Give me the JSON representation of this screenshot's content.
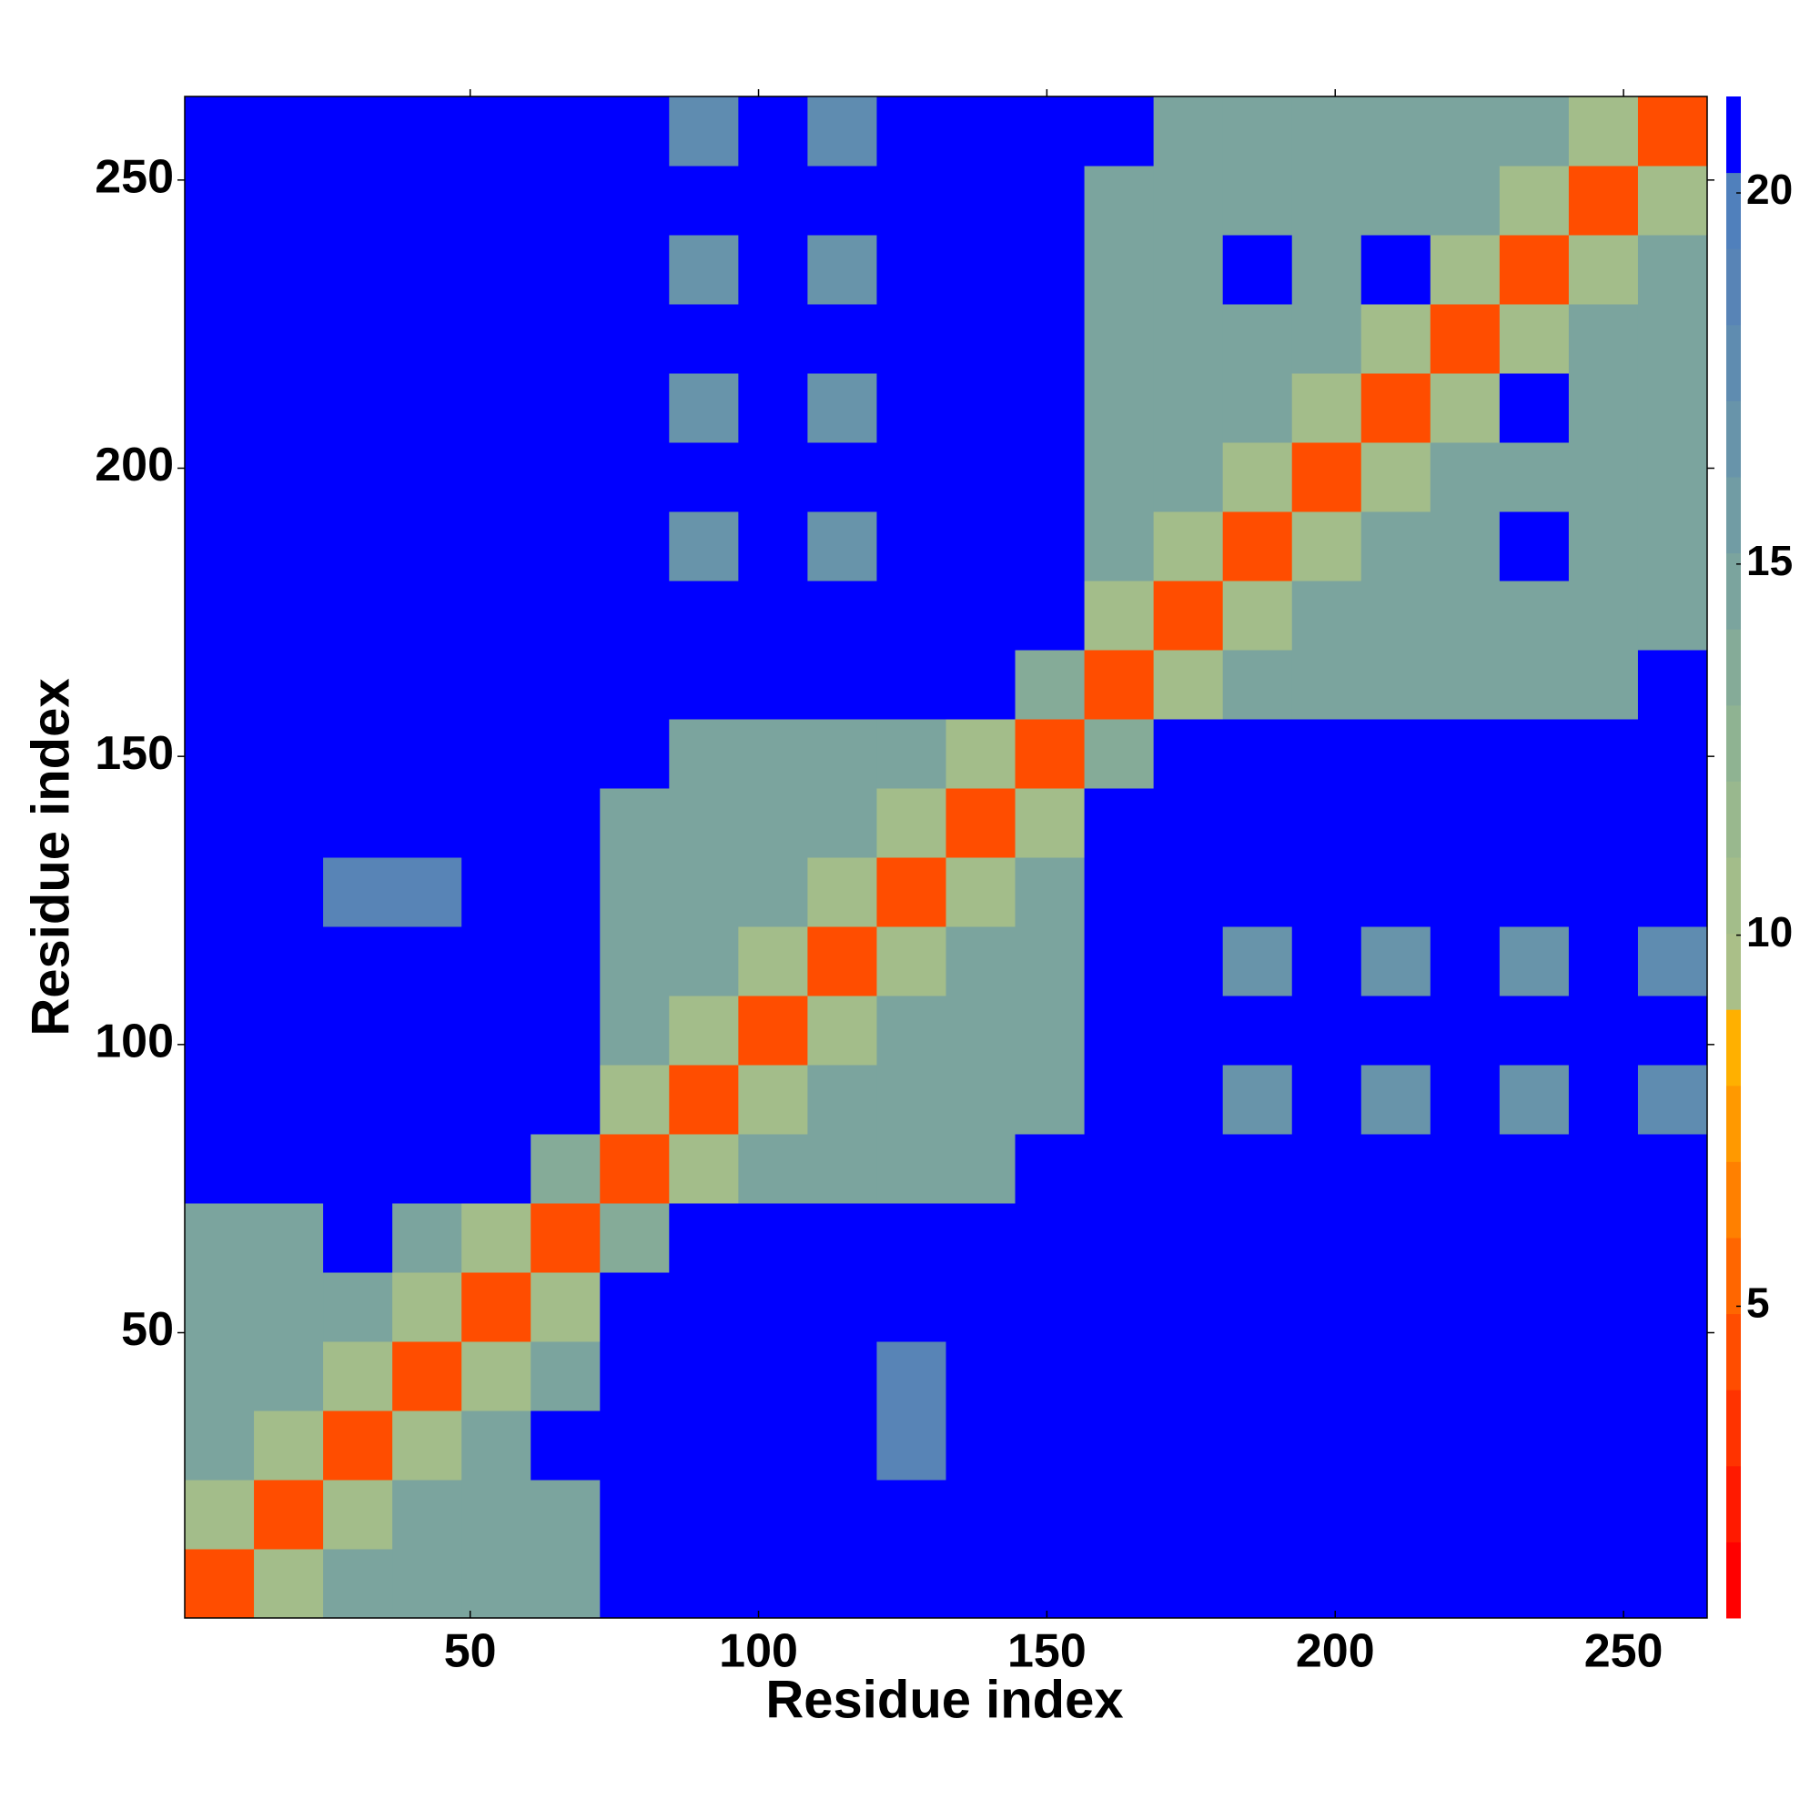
{
  "chart_data": {
    "type": "heatmap",
    "xlabel": "Residue index",
    "ylabel": "Residue index",
    "xlim": [
      0.5,
      264.5
    ],
    "ylim": [
      0.5,
      264.5
    ],
    "xticks": [
      50,
      100,
      150,
      200,
      250
    ],
    "yticks": [
      50,
      100,
      150,
      200,
      250
    ],
    "xbins": [
      0.5,
      12.5,
      24.5,
      36.5,
      48.5,
      60.5,
      72.5,
      84.5,
      96.5,
      108.5,
      120.5,
      132.5,
      144.5,
      156.5,
      168.5,
      180.5,
      192.5,
      204.5,
      216.5,
      228.5,
      240.5,
      252.5,
      264.5
    ],
    "ybins": [
      0.5,
      12.5,
      24.5,
      36.5,
      48.5,
      60.5,
      72.5,
      84.5,
      96.5,
      108.5,
      120.5,
      132.5,
      144.5,
      156.5,
      168.5,
      180.5,
      192.5,
      204.5,
      216.5,
      228.5,
      240.5,
      252.5,
      264.5
    ],
    "zlim": [
      0.8,
      21.3
    ],
    "zticks": [
      5,
      10,
      15,
      20
    ],
    "colors": [
      "#ff0000",
      "#ff1a00",
      "#ff3300",
      "#ff4d00",
      "#ff6600",
      "#ff8000",
      "#ff9900",
      "#ffb000",
      "#aabf88",
      "#a3bd8a",
      "#99b88e",
      "#8fb392",
      "#85ab98",
      "#7ba49e",
      "#719ca4",
      "#6894aa",
      "#5f8cb0",
      "#5884b6",
      "#5080bc",
      "#0000ff"
    ],
    "z": [
      [
        4,
        11,
        15,
        15,
        15,
        15,
        21,
        21,
        21,
        21,
        21,
        21,
        21,
        21,
        21,
        21,
        21,
        21,
        21,
        21,
        21,
        21
      ],
      [
        11,
        4,
        11,
        15,
        15,
        15,
        21,
        21,
        21,
        21,
        21,
        21,
        21,
        21,
        21,
        21,
        21,
        21,
        21,
        21,
        21,
        21
      ],
      [
        15,
        11,
        4,
        11,
        15,
        21,
        21,
        21,
        21,
        21,
        19,
        21,
        21,
        21,
        21,
        21,
        21,
        21,
        21,
        21,
        21,
        21
      ],
      [
        15,
        15,
        11,
        4,
        11,
        15,
        21,
        21,
        21,
        21,
        19,
        21,
        21,
        21,
        21,
        21,
        21,
        21,
        21,
        21,
        21,
        21
      ],
      [
        15,
        15,
        15,
        11,
        4,
        11,
        21,
        21,
        21,
        21,
        21,
        21,
        21,
        21,
        21,
        21,
        21,
        21,
        21,
        21,
        21,
        21
      ],
      [
        15,
        15,
        21,
        15,
        11,
        4,
        14,
        21,
        21,
        21,
        21,
        21,
        21,
        21,
        21,
        21,
        21,
        21,
        21,
        21,
        21,
        21
      ],
      [
        21,
        21,
        21,
        21,
        21,
        14,
        4,
        11,
        15,
        15,
        15,
        15,
        21,
        21,
        21,
        21,
        21,
        21,
        21,
        21,
        21,
        21
      ],
      [
        21,
        21,
        21,
        21,
        21,
        21,
        11,
        4,
        11,
        15,
        15,
        15,
        15,
        21,
        21,
        17,
        21,
        17,
        21,
        17,
        21,
        18
      ],
      [
        21,
        21,
        21,
        21,
        21,
        21,
        15,
        11,
        4,
        11,
        15,
        15,
        15,
        21,
        21,
        21,
        21,
        21,
        21,
        21,
        21,
        21
      ],
      [
        21,
        21,
        21,
        21,
        21,
        21,
        15,
        15,
        11,
        4,
        11,
        15,
        15,
        21,
        21,
        17,
        21,
        17,
        21,
        17,
        21,
        18
      ],
      [
        21,
        21,
        19,
        19,
        21,
        21,
        15,
        15,
        15,
        11,
        4,
        11,
        15,
        21,
        21,
        21,
        21,
        21,
        21,
        21,
        21,
        21
      ],
      [
        21,
        21,
        21,
        21,
        21,
        21,
        15,
        15,
        15,
        15,
        11,
        4,
        11,
        21,
        21,
        21,
        21,
        21,
        21,
        21,
        21,
        21
      ],
      [
        21,
        21,
        21,
        21,
        21,
        21,
        21,
        15,
        15,
        15,
        15,
        11,
        4,
        14,
        21,
        21,
        21,
        21,
        21,
        21,
        21,
        21
      ],
      [
        21,
        21,
        21,
        21,
        21,
        21,
        21,
        21,
        21,
        21,
        21,
        21,
        14,
        4,
        11,
        15,
        15,
        15,
        15,
        15,
        15,
        21
      ],
      [
        21,
        21,
        21,
        21,
        21,
        21,
        21,
        21,
        21,
        21,
        21,
        21,
        21,
        11,
        4,
        11,
        15,
        15,
        15,
        15,
        15,
        15
      ],
      [
        21,
        21,
        21,
        21,
        21,
        21,
        21,
        17,
        21,
        17,
        21,
        21,
        21,
        15,
        11,
        4,
        11,
        15,
        15,
        21,
        15,
        15
      ],
      [
        21,
        21,
        21,
        21,
        21,
        21,
        21,
        21,
        21,
        21,
        21,
        21,
        21,
        15,
        15,
        11,
        4,
        11,
        15,
        15,
        15,
        15
      ],
      [
        21,
        21,
        21,
        21,
        21,
        21,
        21,
        17,
        21,
        17,
        21,
        21,
        21,
        15,
        15,
        15,
        11,
        4,
        11,
        21,
        15,
        15
      ],
      [
        21,
        21,
        21,
        21,
        21,
        21,
        21,
        21,
        21,
        21,
        21,
        21,
        21,
        15,
        15,
        15,
        15,
        11,
        4,
        11,
        15,
        15
      ],
      [
        21,
        21,
        21,
        21,
        21,
        21,
        21,
        17,
        21,
        17,
        21,
        21,
        21,
        15,
        15,
        21,
        15,
        21,
        11,
        4,
        11,
        15
      ],
      [
        21,
        21,
        21,
        21,
        21,
        21,
        21,
        21,
        21,
        21,
        21,
        21,
        21,
        15,
        15,
        15,
        15,
        15,
        15,
        11,
        4,
        11
      ],
      [
        21,
        21,
        21,
        21,
        21,
        21,
        21,
        18,
        21,
        18,
        21,
        21,
        21,
        21,
        15,
        15,
        15,
        15,
        15,
        15,
        11,
        4
      ]
    ]
  }
}
